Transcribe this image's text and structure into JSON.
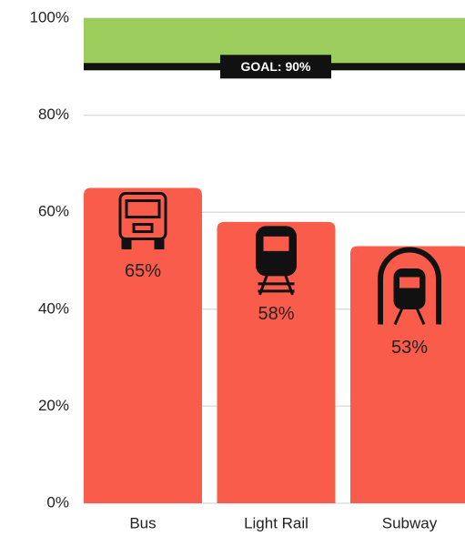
{
  "chart_data": {
    "type": "bar",
    "categories": [
      "Bus",
      "Light Rail",
      "Subway"
    ],
    "values": [
      65,
      58,
      53
    ],
    "value_labels": [
      "65%",
      "58%",
      "53%"
    ],
    "color": "#f95c4b",
    "ylim": [
      0,
      100
    ],
    "yticks": [
      {
        "value": 0,
        "label": "0%"
      },
      {
        "value": 20,
        "label": "20%"
      },
      {
        "value": 40,
        "label": "40%"
      },
      {
        "value": 60,
        "label": "60%"
      },
      {
        "value": 80,
        "label": "80%"
      },
      {
        "value": 100,
        "label": "100%"
      }
    ],
    "grid": true,
    "goal": {
      "value": 90,
      "label": "GOAL: 90%",
      "color": "#9ccc5c"
    }
  }
}
